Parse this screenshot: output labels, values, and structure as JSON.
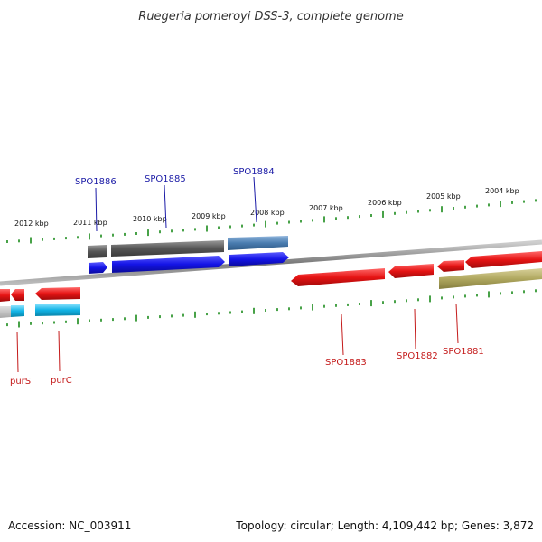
{
  "title": "Ruegeria pomeroyi DSS-3, complete genome",
  "footer": {
    "accession": "Accession: NC_003911",
    "topology": "Topology: circular; Length: 4,109,442 bp; Genes: 3,872"
  },
  "ruler": {
    "top_labels": [
      "2012 kbp",
      "2011 kbp",
      "2010 kbp",
      "2009 kbp",
      "2008 kbp",
      "2007 kbp",
      "2006 kbp",
      "2005 kbp",
      "2004 kbp"
    ]
  },
  "gene_labels": {
    "top": [
      "SPO1886",
      "SPO1885",
      "SPO1884"
    ],
    "bottom": [
      "purS",
      "purC",
      "SPO1883",
      "SPO1882",
      "SPO1881"
    ]
  },
  "colors": {
    "forward_cds": "#1414e6",
    "reverse_cds": "#e61414",
    "forward_gene": "#555555",
    "reverse_gene_light": "#12b4e6",
    "highlight_steel": "#4a7cb0",
    "olive": "#b0a860",
    "backbone": "#888888",
    "ticks": "#1a8a1a"
  }
}
